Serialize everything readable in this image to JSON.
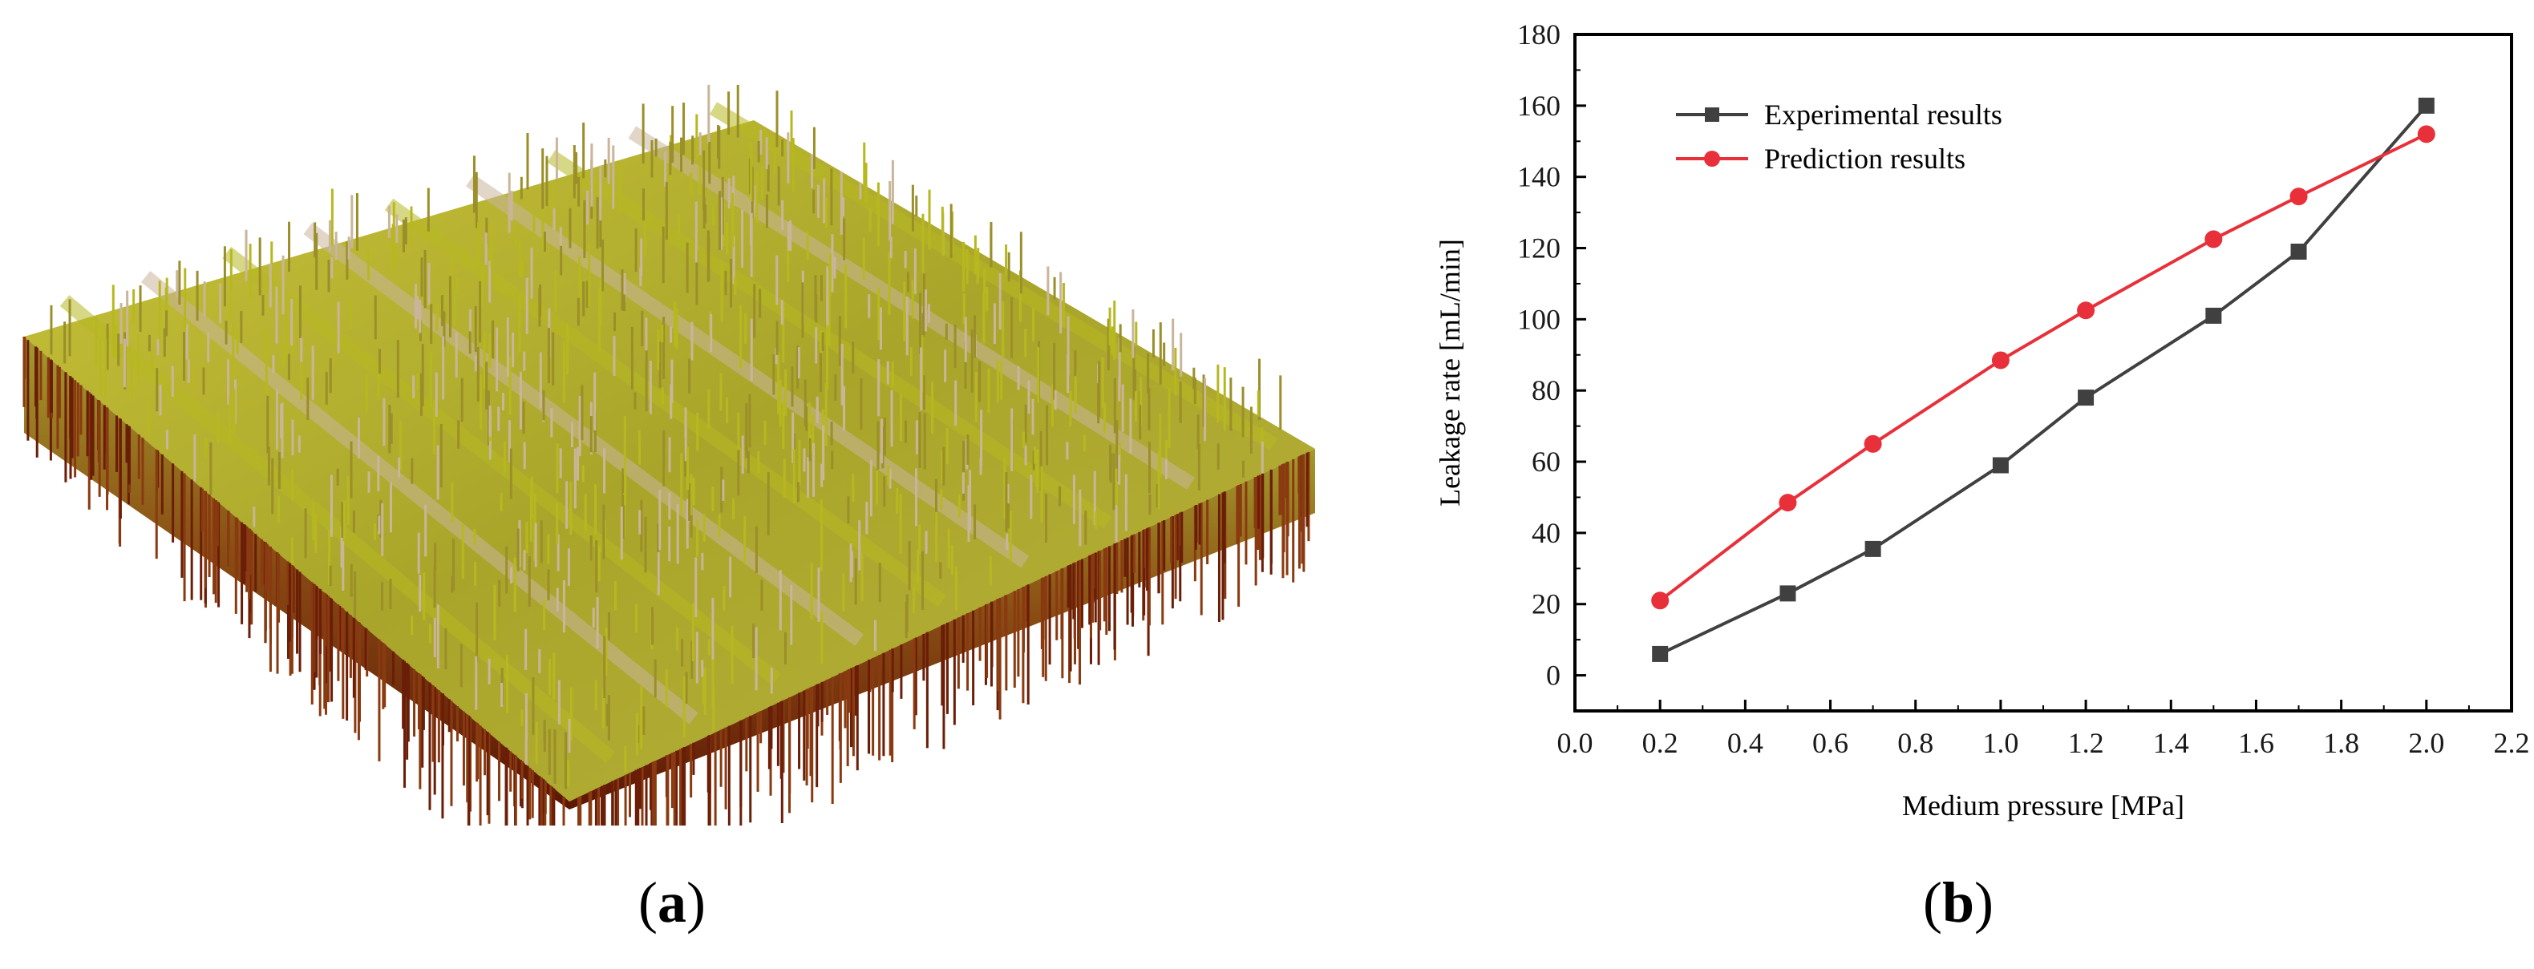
{
  "panels": {
    "a": {
      "caption_open": "(",
      "caption_letter": "a",
      "caption_close": ")",
      "surface_colors": {
        "top": "#b7b820",
        "mid": "#9a8f2a",
        "peak": "#c9b59a",
        "base": "#6a1e08"
      }
    },
    "b": {
      "caption_open": "(",
      "caption_letter": "b",
      "caption_close": ")"
    }
  },
  "chart_data": {
    "type": "line",
    "xlabel": "Medium pressure [MPa]",
    "ylabel": "Leakage rate [mL/min]",
    "xlim": [
      0.0,
      2.2
    ],
    "ylim": [
      -10,
      180
    ],
    "xticks": [
      "0.0",
      "0.2",
      "0.4",
      "0.6",
      "0.8",
      "1.0",
      "1.2",
      "1.4",
      "1.6",
      "1.8",
      "2.0",
      "2.2"
    ],
    "yticks": [
      "0",
      "20",
      "40",
      "60",
      "80",
      "100",
      "120",
      "140",
      "160",
      "180"
    ],
    "legend_position": "top-left",
    "grid": false,
    "series": [
      {
        "name": "Experimental results",
        "color": "#404040",
        "marker": "square",
        "x": [
          0.2,
          0.5,
          0.7,
          1.0,
          1.2,
          1.5,
          1.7,
          2.0
        ],
        "y": [
          6,
          23,
          35.5,
          59,
          78,
          101,
          119,
          160
        ]
      },
      {
        "name": "Prediction results",
        "color": "#e8303a",
        "marker": "circle",
        "x": [
          0.2,
          0.5,
          0.7,
          1.0,
          1.2,
          1.5,
          1.7,
          2.0
        ],
        "y": [
          21,
          48.5,
          65,
          88.5,
          102.5,
          122.5,
          134.5,
          152
        ]
      }
    ]
  }
}
